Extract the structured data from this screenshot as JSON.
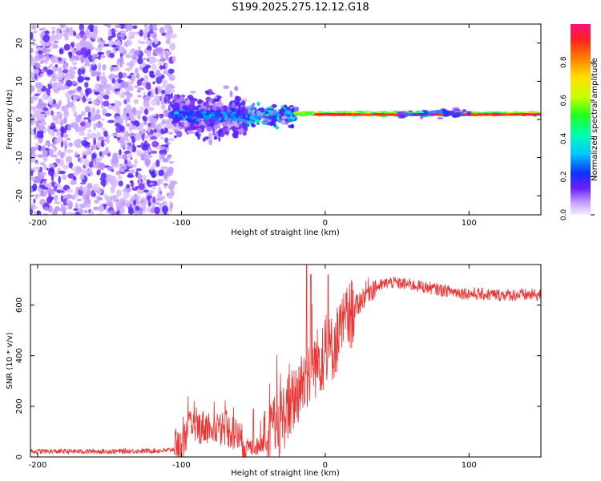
{
  "title": "S199.2025.275.12.12.G18",
  "colorbar": {
    "label": "Normalized spectral amplitude",
    "ticks": [
      "0.0",
      "0.2",
      "0.4",
      "0.6",
      "0.8"
    ],
    "range": [
      0,
      1
    ]
  },
  "chart_data": [
    {
      "type": "heatmap",
      "name": "spectrogram",
      "xlabel": "Height of straight line (km)",
      "ylabel": "Frequency (Hz)",
      "xlim": [
        -205,
        150
      ],
      "ylim": [
        -25,
        25
      ],
      "xticks": [
        -200,
        -100,
        0,
        100
      ],
      "yticks": [
        -20,
        -10,
        0,
        10,
        20
      ],
      "xtick_labels": [
        "-200",
        "-100",
        "0",
        "100"
      ],
      "ytick_labels": [
        "-20",
        "-10",
        "0",
        "10",
        "20"
      ],
      "description_regions": [
        {
          "x_range": [
            -205,
            -105
          ],
          "freq_spread": 25,
          "amplitude": 0.15
        },
        {
          "x_range": [
            -105,
            -55
          ],
          "freq_spread": 8,
          "amplitude": 0.3
        },
        {
          "x_range": [
            -55,
            -20
          ],
          "freq_spread": 4,
          "amplitude": 0.4
        },
        {
          "x_range": [
            -20,
            150
          ],
          "center_freq": 1.5,
          "amplitude": 1.0
        }
      ]
    },
    {
      "type": "line",
      "name": "snr",
      "xlabel": "Height of straight line (km)",
      "ylabel": "SNR (10 * v/v)",
      "xlim": [
        -205,
        150
      ],
      "ylim": [
        0,
        760
      ],
      "xticks": [
        -200,
        -100,
        0,
        100
      ],
      "yticks": [
        0,
        200,
        400,
        600
      ],
      "xtick_labels": [
        "-200",
        "-100",
        "0",
        "100"
      ],
      "ytick_labels": [
        "0",
        "200",
        "400",
        "600"
      ],
      "color": "#ee3333",
      "profile": [
        [
          -205,
          22
        ],
        [
          -150,
          22
        ],
        [
          -110,
          25
        ],
        [
          -100,
          40
        ],
        [
          -95,
          110
        ],
        [
          -85,
          120
        ],
        [
          -70,
          115
        ],
        [
          -60,
          80
        ],
        [
          -55,
          40
        ],
        [
          -50,
          35
        ],
        [
          -40,
          60
        ],
        [
          -30,
          150
        ],
        [
          -20,
          250
        ],
        [
          -12,
          330
        ],
        [
          -5,
          380
        ],
        [
          0,
          400
        ],
        [
          5,
          430
        ],
        [
          15,
          540
        ],
        [
          30,
          660
        ],
        [
          45,
          690
        ],
        [
          60,
          680
        ],
        [
          80,
          660
        ],
        [
          100,
          645
        ],
        [
          120,
          640
        ],
        [
          150,
          640
        ]
      ],
      "spikes": [
        [
          -13,
          760
        ],
        [
          -10,
          720
        ],
        [
          2,
          720
        ],
        [
          -42,
          180
        ],
        [
          -50,
          190
        ]
      ]
    }
  ]
}
